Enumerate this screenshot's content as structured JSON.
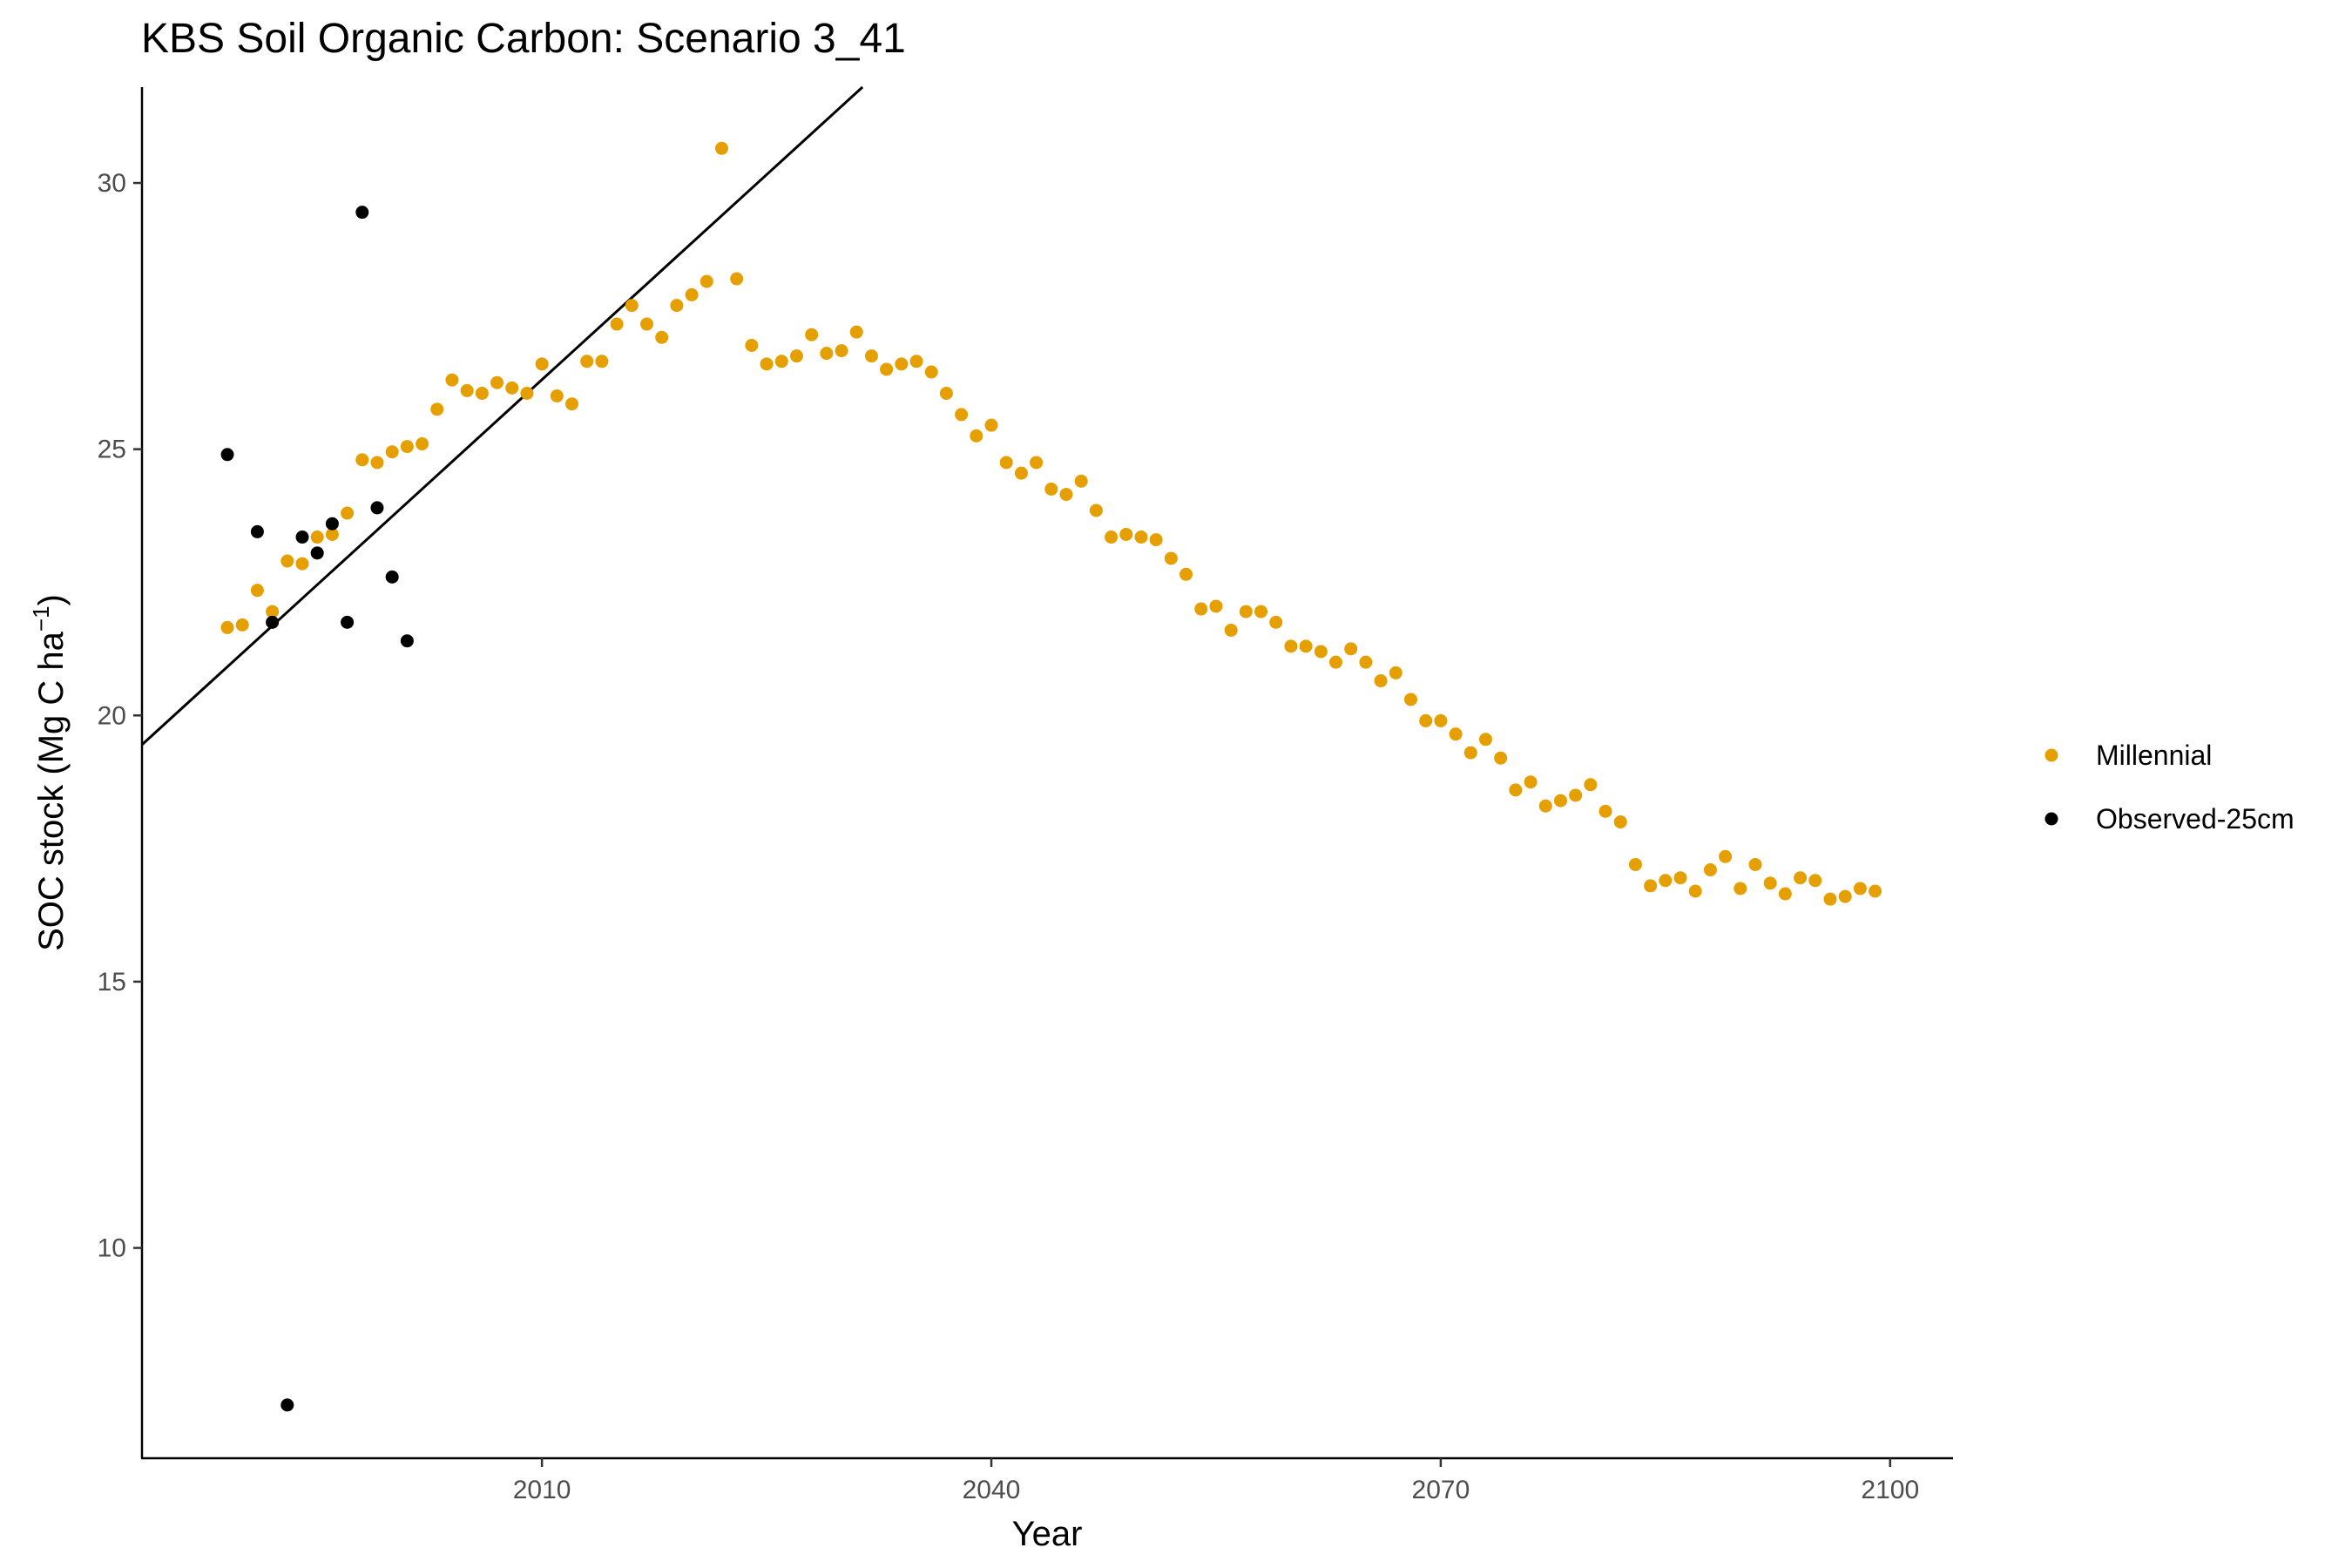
{
  "chart_data": {
    "type": "scatter",
    "title": "KBS Soil Organic Carbon: Scenario  3_41",
    "xlabel": "Year",
    "ylabel": "SOC stock (Mg C ha",
    "ylabel_sup": "−1",
    "ylabel_close": ")",
    "xlim": [
      1983.3,
      2104.2
    ],
    "ylim": [
      6.05,
      31.8
    ],
    "x_ticks": [
      2010,
      2040,
      2070,
      2100
    ],
    "x_tick_labels": [
      "2010",
      "2040",
      "2070",
      "2100"
    ],
    "y_ticks": [
      10,
      15,
      20,
      25,
      30
    ],
    "y_tick_labels": [
      "10",
      "15",
      "20",
      "25",
      "30"
    ],
    "grid": false,
    "legend_position": "right",
    "series": [
      {
        "name": "Millennial",
        "color": "#E69F00",
        "x": [
          1989,
          1990,
          1991,
          1992,
          1993,
          1994,
          1995,
          1996,
          1997,
          1998,
          1999,
          2000,
          2001,
          2002,
          2003,
          2004,
          2005,
          2006,
          2007,
          2008,
          2009,
          2010,
          2011,
          2012,
          2013,
          2014,
          2015,
          2016,
          2017,
          2018,
          2019,
          2020,
          2021,
          2022,
          2023,
          2024,
          2025,
          2026,
          2027,
          2028,
          2029,
          2030,
          2031,
          2032,
          2033,
          2034,
          2035,
          2036,
          2037,
          2038,
          2039,
          2040,
          2041,
          2042,
          2043,
          2044,
          2045,
          2046,
          2047,
          2048,
          2049,
          2050,
          2051,
          2052,
          2053,
          2054,
          2055,
          2056,
          2057,
          2058,
          2059,
          2060,
          2061,
          2062,
          2063,
          2064,
          2065,
          2066,
          2067,
          2068,
          2069,
          2070,
          2071,
          2072,
          2073,
          2074,
          2075,
          2076,
          2077,
          2078,
          2079,
          2080,
          2081,
          2082,
          2083,
          2084,
          2085,
          2086,
          2087,
          2088,
          2089,
          2090,
          2091,
          2092,
          2093,
          2094,
          2095,
          2096,
          2097,
          2098,
          2099
        ],
        "y": [
          21.65,
          21.7,
          22.35,
          21.95,
          22.9,
          22.85,
          23.35,
          23.4,
          23.8,
          24.8,
          24.75,
          24.95,
          25.05,
          25.1,
          25.75,
          26.3,
          26.1,
          26.05,
          26.25,
          26.15,
          26.05,
          26.6,
          26.0,
          25.85,
          26.65,
          26.65,
          27.35,
          27.7,
          27.35,
          27.1,
          27.7,
          27.9,
          28.15,
          30.65,
          28.2,
          26.95,
          26.6,
          26.65,
          26.75,
          27.15,
          26.8,
          26.85,
          27.2,
          26.75,
          26.5,
          26.6,
          26.65,
          26.45,
          26.05,
          25.65,
          25.25,
          25.45,
          24.75,
          24.55,
          24.75,
          24.25,
          24.15,
          24.4,
          23.85,
          23.35,
          23.4,
          23.35,
          23.3,
          22.95,
          22.65,
          22.0,
          22.05,
          21.6,
          21.95,
          21.95,
          21.75,
          21.3,
          21.3,
          21.2,
          21.0,
          21.25,
          21.0,
          20.65,
          20.8,
          20.3,
          19.9,
          19.9,
          19.65,
          19.3,
          19.55,
          19.2,
          18.6,
          18.75,
          18.3,
          18.4,
          18.5,
          18.7,
          18.2,
          18.0,
          17.2,
          16.8,
          16.9,
          16.95,
          16.7,
          17.1,
          17.35,
          16.75,
          17.2,
          16.85,
          16.65,
          16.95,
          16.9,
          16.55,
          16.6,
          16.75,
          16.7
        ]
      },
      {
        "name": "Observed-25cm",
        "color": "#000000",
        "x": [
          1989,
          1991,
          1992,
          1993,
          1994,
          1995,
          1996,
          1997,
          1998,
          1999,
          2000,
          2001
        ],
        "y": [
          24.9,
          23.45,
          21.75,
          7.05,
          23.35,
          23.05,
          23.6,
          21.75,
          29.45,
          23.9,
          22.6,
          21.4
        ]
      }
    ],
    "trend_line": {
      "color": "#000000",
      "x": [
        1983.3,
        2031.4
      ],
      "y": [
        19.45,
        31.8
      ]
    }
  }
}
